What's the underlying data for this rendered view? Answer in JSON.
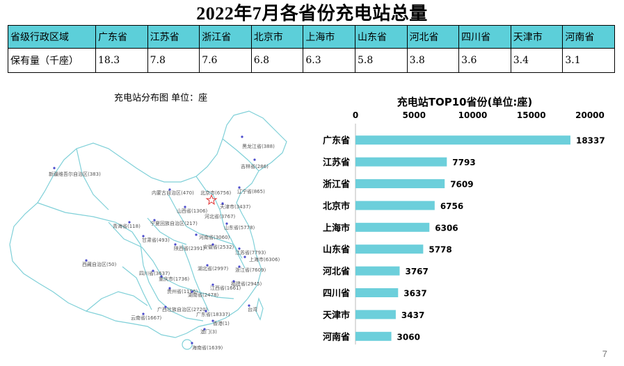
{
  "title": "2022年7月各省份充电站总量",
  "table": {
    "header_label": "省级行政区域",
    "row_label": "保有量（千座）",
    "provinces": [
      "广东省",
      "江苏省",
      "浙江省",
      "北京市",
      "上海市",
      "山东省",
      "河北省",
      "四川省",
      "天津市",
      "河南省"
    ],
    "values": [
      "18.3",
      "7.8",
      "7.6",
      "6.8",
      "6.3",
      "5.8",
      "3.8",
      "3.6",
      "3.4",
      "3.1"
    ]
  },
  "map": {
    "title": "充电站分布图   单位：座",
    "labels": [
      "黑龙江省(388)",
      "吉林省(286)",
      "辽宁省(865)",
      "内蒙古自治区(470)",
      "北京市(6756)",
      "新疆维吾尔自治区(383)",
      "天津市(3437)",
      "河北省(3767)",
      "山西省(1306)",
      "宁夏回族自治区(217)",
      "青海省(118)",
      "山东省(5778)",
      "甘肃省(493)",
      "河南省(3060)",
      "陕西省(2391)",
      "安徽省(2532)",
      "江苏省(7793)",
      "上海市(6306)",
      "西藏自治区(50)",
      "湖北省(2997)",
      "浙江省(7609)",
      "四川省(3637)",
      "重庆市(1736)",
      "福建省(2945)",
      "贵州省(1196)",
      "江西省(1661)",
      "湖南省(2478)",
      "广西壮族自治区(2720)",
      "台湾",
      "云南省(1667)",
      "广东省(18337)",
      "香港(1)",
      "澳门(3)",
      "海南省(1639)"
    ]
  },
  "chart_data": {
    "type": "bar",
    "orientation": "horizontal",
    "title": "充电站TOP10省份(单位:座)",
    "categories": [
      "广东省",
      "江苏省",
      "浙江省",
      "北京市",
      "上海市",
      "山东省",
      "河北省",
      "四川省",
      "天津市",
      "河南省"
    ],
    "values": [
      18337,
      7793,
      7609,
      6756,
      6306,
      5778,
      3767,
      3637,
      3437,
      3060
    ],
    "xlim": [
      0,
      20000
    ],
    "xticks": [
      "0",
      "5000",
      "10000",
      "15000",
      "20000"
    ],
    "axis_position": "top",
    "grid": false,
    "bar_color": "#6ccfdb"
  },
  "page_number": "7"
}
